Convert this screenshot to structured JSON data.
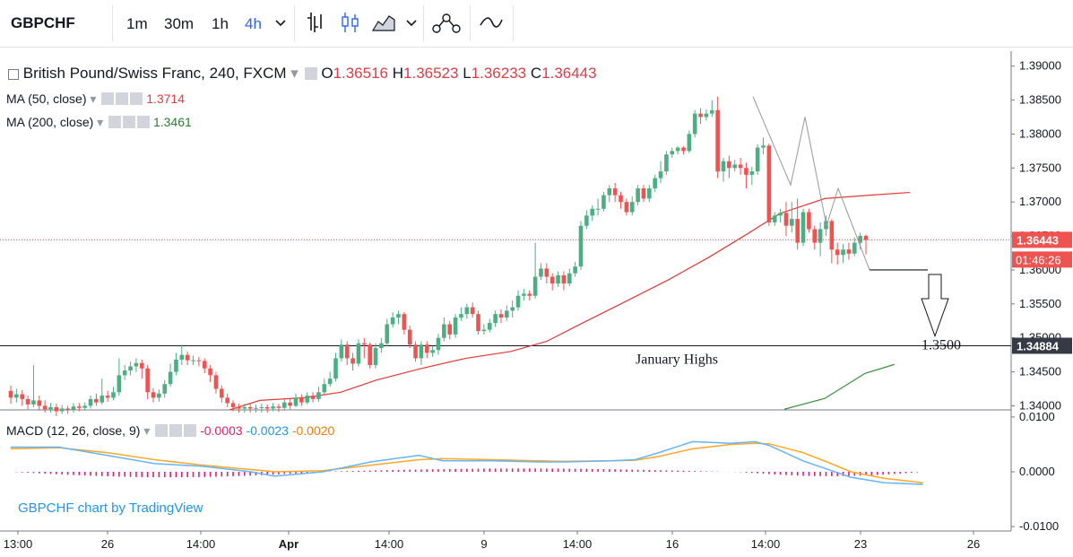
{
  "toolbar": {
    "symbol": "GBPCHF",
    "intervals": [
      "1m",
      "30m",
      "1h",
      "4h"
    ],
    "active_interval": "4h",
    "icons": [
      "chevron-down-icon",
      "bars-icon",
      "candles-icon",
      "area-icon",
      "chevron-down-icon",
      "indicators-icon",
      "compare-icon"
    ]
  },
  "legend": {
    "title": "British Pound/Swiss Franc, 240, FXCM",
    "ohlc": [
      {
        "k": "O",
        "v": "1.36516"
      },
      {
        "k": "H",
        "v": "1.36523"
      },
      {
        "k": "L",
        "v": "1.36233"
      },
      {
        "k": "C",
        "v": "1.36443"
      }
    ],
    "ma50_label": "MA (50, close)",
    "ma50_value": "1.3714",
    "ma200_label": "MA (200, close)",
    "ma200_value": "1.3461",
    "macd_label": "MACD (12, 26, close, 9)",
    "macd_hist": "-0.0003",
    "macd_line": "-0.0023",
    "macd_signal": "-0.0020"
  },
  "watermark": "GBPCHF chart by TradingView",
  "colors": {
    "up": "#4caf83",
    "down": "#ef5350",
    "ma50": "#e53935",
    "ma200": "#388e3c",
    "macd": "#64b5f6",
    "signal": "#ffa726",
    "hist": "#e91e63"
  },
  "chart_data": [
    {
      "type": "candlestick",
      "title": "British Pound/Swiss Franc, 240, FXCM",
      "x_ticks": [
        "13:00",
        "26",
        "14:00",
        "Apr",
        "14:00",
        "9",
        "14:00",
        "16",
        "14:00",
        "23",
        "26"
      ],
      "y_ticks": [
        "1.39000",
        "1.38500",
        "1.38000",
        "1.37500",
        "1.37000",
        "1.36500",
        "1.36000",
        "1.35500",
        "1.35000",
        "1.34500",
        "1.34000"
      ],
      "ylim": [
        1.3394,
        1.3922
      ],
      "current_price_label": "1.36443",
      "countdown_label": "01:46:26",
      "current_price": 1.36443,
      "horizontal_line": {
        "value": 1.34884,
        "label": "1.34884",
        "annotation": "January Highs"
      },
      "target": {
        "value": 1.35,
        "label": "1.3500"
      },
      "support_line": 1.36,
      "zigzag": [
        1.3855,
        1.3725,
        1.3825,
        1.3665,
        1.372,
        1.36
      ],
      "ma200_start": 1.3395,
      "ma200_end": 1.3461,
      "candles": [
        [
          1.3422,
          1.3412,
          1.343,
          1.3403
        ],
        [
          1.3412,
          1.3417,
          1.3425,
          1.3405
        ],
        [
          1.3417,
          1.341,
          1.3423,
          1.34
        ],
        [
          1.341,
          1.3402,
          1.3415,
          1.3395
        ],
        [
          1.3402,
          1.3408,
          1.346,
          1.3398
        ],
        [
          1.3408,
          1.34,
          1.3415,
          1.3393
        ],
        [
          1.34,
          1.3395,
          1.3408,
          1.339
        ],
        [
          1.3395,
          1.3398,
          1.3404,
          1.339
        ],
        [
          1.3398,
          1.3392,
          1.3403,
          1.3385
        ],
        [
          1.3392,
          1.3396,
          1.3401,
          1.3388
        ],
        [
          1.3396,
          1.3394,
          1.34,
          1.3388
        ],
        [
          1.3394,
          1.3399,
          1.3404,
          1.339
        ],
        [
          1.3399,
          1.3397,
          1.3404,
          1.3392
        ],
        [
          1.3397,
          1.34,
          1.3405,
          1.3393
        ],
        [
          1.34,
          1.341,
          1.3415,
          1.3396
        ],
        [
          1.341,
          1.3405,
          1.3418,
          1.34
        ],
        [
          1.3405,
          1.3415,
          1.344,
          1.3402
        ],
        [
          1.3415,
          1.3412,
          1.3422,
          1.3406
        ],
        [
          1.3412,
          1.342,
          1.3428,
          1.3408
        ],
        [
          1.342,
          1.3445,
          1.347,
          1.3415
        ],
        [
          1.3445,
          1.3452,
          1.346,
          1.3438
        ],
        [
          1.3452,
          1.3458,
          1.3465,
          1.3445
        ],
        [
          1.3458,
          1.3463,
          1.347,
          1.345
        ],
        [
          1.3463,
          1.3455,
          1.3468,
          1.344
        ],
        [
          1.3455,
          1.342,
          1.346,
          1.341
        ],
        [
          1.342,
          1.3412,
          1.3426,
          1.3405
        ],
        [
          1.3412,
          1.3418,
          1.3424,
          1.3406
        ],
        [
          1.3418,
          1.3432,
          1.3438,
          1.3412
        ],
        [
          1.3432,
          1.345,
          1.3462,
          1.3428
        ],
        [
          1.345,
          1.3468,
          1.3478,
          1.3445
        ],
        [
          1.3468,
          1.3475,
          1.349,
          1.346
        ],
        [
          1.3475,
          1.3467,
          1.348,
          1.346
        ],
        [
          1.3467,
          1.3467,
          1.3474,
          1.346
        ],
        [
          1.3467,
          1.3466,
          1.3472,
          1.3458
        ],
        [
          1.3466,
          1.3455,
          1.347,
          1.3448
        ],
        [
          1.3455,
          1.3445,
          1.346,
          1.3435
        ],
        [
          1.3445,
          1.3425,
          1.345,
          1.3418
        ],
        [
          1.3425,
          1.3412,
          1.343,
          1.3405
        ],
        [
          1.3412,
          1.3404,
          1.3418,
          1.3398
        ],
        [
          1.3404,
          1.3398,
          1.3408,
          1.3392
        ],
        [
          1.3398,
          1.3396,
          1.3403,
          1.339
        ],
        [
          1.3396,
          1.3398,
          1.3403,
          1.339
        ],
        [
          1.3398,
          1.3396,
          1.3403,
          1.339
        ],
        [
          1.3396,
          1.3397,
          1.3402,
          1.339
        ],
        [
          1.3397,
          1.3398,
          1.3403,
          1.339
        ],
        [
          1.3398,
          1.3396,
          1.3402,
          1.339
        ],
        [
          1.3396,
          1.3399,
          1.3404,
          1.3392
        ],
        [
          1.3399,
          1.3397,
          1.3403,
          1.3391
        ],
        [
          1.3397,
          1.3405,
          1.341,
          1.3393
        ],
        [
          1.3405,
          1.34,
          1.341,
          1.3395
        ],
        [
          1.34,
          1.3412,
          1.3418,
          1.3398
        ],
        [
          1.3412,
          1.3405,
          1.3417,
          1.34
        ],
        [
          1.3405,
          1.3415,
          1.342,
          1.3402
        ],
        [
          1.3415,
          1.341,
          1.342,
          1.3405
        ],
        [
          1.341,
          1.342,
          1.3428,
          1.3406
        ],
        [
          1.342,
          1.3432,
          1.344,
          1.3415
        ],
        [
          1.3432,
          1.344,
          1.345,
          1.3428
        ],
        [
          1.344,
          1.347,
          1.3478,
          1.3436
        ],
        [
          1.347,
          1.349,
          1.3498,
          1.3465
        ],
        [
          1.349,
          1.347,
          1.3495,
          1.346
        ],
        [
          1.347,
          1.3462,
          1.3478,
          1.3452
        ],
        [
          1.3462,
          1.3492,
          1.3498,
          1.3458
        ],
        [
          1.3492,
          1.349,
          1.35,
          1.347
        ],
        [
          1.349,
          1.346,
          1.3493,
          1.3455
        ],
        [
          1.346,
          1.3485,
          1.3492,
          1.3455
        ],
        [
          1.3485,
          1.3492,
          1.35,
          1.3478
        ],
        [
          1.3492,
          1.352,
          1.3528,
          1.3488
        ],
        [
          1.352,
          1.353,
          1.3538,
          1.3515
        ],
        [
          1.353,
          1.3535,
          1.354,
          1.352
        ],
        [
          1.3535,
          1.3512,
          1.3538,
          1.3505
        ],
        [
          1.3512,
          1.349,
          1.3518,
          1.3485
        ],
        [
          1.349,
          1.347,
          1.3495,
          1.3465
        ],
        [
          1.347,
          1.349,
          1.3495,
          1.346
        ],
        [
          1.349,
          1.3478,
          1.3495,
          1.347
        ],
        [
          1.3478,
          1.3482,
          1.3488,
          1.3472
        ],
        [
          1.3482,
          1.35,
          1.3506,
          1.3475
        ],
        [
          1.35,
          1.352,
          1.353,
          1.3495
        ],
        [
          1.352,
          1.3505,
          1.3525,
          1.3498
        ],
        [
          1.3505,
          1.353,
          1.3535,
          1.35
        ],
        [
          1.353,
          1.3535,
          1.3545,
          1.3525
        ],
        [
          1.3535,
          1.3545,
          1.355,
          1.3528
        ],
        [
          1.3545,
          1.3535,
          1.3552,
          1.353
        ],
        [
          1.3535,
          1.351,
          1.354,
          1.3505
        ],
        [
          1.351,
          1.3512,
          1.352,
          1.3505
        ],
        [
          1.3512,
          1.3522,
          1.3528,
          1.3508
        ],
        [
          1.3522,
          1.3535,
          1.354,
          1.3516
        ],
        [
          1.3535,
          1.353,
          1.3542,
          1.3522
        ],
        [
          1.353,
          1.354,
          1.3548,
          1.3525
        ],
        [
          1.354,
          1.3545,
          1.3555,
          1.353
        ],
        [
          1.3545,
          1.3562,
          1.357,
          1.354
        ],
        [
          1.3562,
          1.3565,
          1.3572,
          1.3555
        ],
        [
          1.3565,
          1.3562,
          1.357,
          1.3555
        ],
        [
          1.3562,
          1.359,
          1.364,
          1.3558
        ],
        [
          1.359,
          1.3602,
          1.361,
          1.3585
        ],
        [
          1.3602,
          1.359,
          1.361,
          1.358
        ],
        [
          1.359,
          1.358,
          1.3595,
          1.357
        ],
        [
          1.358,
          1.3592,
          1.3598,
          1.3575
        ],
        [
          1.3592,
          1.358,
          1.3598,
          1.357
        ],
        [
          1.358,
          1.3595,
          1.3602,
          1.3576
        ],
        [
          1.3595,
          1.3605,
          1.3612,
          1.359
        ],
        [
          1.3605,
          1.3665,
          1.3672,
          1.36
        ],
        [
          1.3665,
          1.368,
          1.3688,
          1.366
        ],
        [
          1.368,
          1.369,
          1.3695,
          1.3672
        ],
        [
          1.369,
          1.369,
          1.3705,
          1.368
        ],
        [
          1.369,
          1.371,
          1.3715,
          1.3686
        ],
        [
          1.371,
          1.372,
          1.3725,
          1.37
        ],
        [
          1.372,
          1.371,
          1.3728,
          1.37
        ],
        [
          1.371,
          1.37,
          1.3715,
          1.369
        ],
        [
          1.37,
          1.3685,
          1.3705,
          1.368
        ],
        [
          1.3685,
          1.37,
          1.3708,
          1.368
        ],
        [
          1.37,
          1.372,
          1.3725,
          1.3695
        ],
        [
          1.372,
          1.3705,
          1.3725,
          1.37
        ],
        [
          1.3705,
          1.372,
          1.3725,
          1.37
        ],
        [
          1.372,
          1.3735,
          1.374,
          1.3715
        ],
        [
          1.3735,
          1.3745,
          1.376,
          1.3728
        ],
        [
          1.3745,
          1.377,
          1.3775,
          1.374
        ],
        [
          1.377,
          1.3775,
          1.378,
          1.3765
        ],
        [
          1.3775,
          1.378,
          1.3782,
          1.377
        ],
        [
          1.378,
          1.3775,
          1.3782,
          1.377
        ],
        [
          1.3775,
          1.38,
          1.3805,
          1.3772
        ],
        [
          1.38,
          1.383,
          1.3835,
          1.3795
        ],
        [
          1.383,
          1.3825,
          1.3838,
          1.3815
        ],
        [
          1.3825,
          1.383,
          1.3836,
          1.382
        ],
        [
          1.383,
          1.3835,
          1.385,
          1.3825
        ],
        [
          1.3835,
          1.3745,
          1.3855,
          1.3735
        ],
        [
          1.3745,
          1.376,
          1.3765,
          1.373
        ],
        [
          1.376,
          1.375,
          1.3768,
          1.3735
        ],
        [
          1.375,
          1.3755,
          1.3762,
          1.3745
        ],
        [
          1.3755,
          1.375,
          1.3765,
          1.374
        ],
        [
          1.375,
          1.374,
          1.3758,
          1.372
        ],
        [
          1.374,
          1.3745,
          1.3752,
          1.3725
        ],
        [
          1.3745,
          1.378,
          1.3785,
          1.374
        ],
        [
          1.378,
          1.3783,
          1.3795,
          1.377
        ],
        [
          1.3783,
          1.367,
          1.3786,
          1.3665
        ],
        [
          1.367,
          1.368,
          1.3685,
          1.3665
        ],
        [
          1.368,
          1.3684,
          1.369,
          1.367
        ],
        [
          1.3684,
          1.3665,
          1.37,
          1.365
        ],
        [
          1.3665,
          1.3675,
          1.37,
          1.3655
        ],
        [
          1.3675,
          1.364,
          1.3705,
          1.363
        ],
        [
          1.364,
          1.3685,
          1.369,
          1.3635
        ],
        [
          1.3685,
          1.366,
          1.369,
          1.3655
        ],
        [
          1.366,
          1.364,
          1.3665,
          1.363
        ],
        [
          1.364,
          1.366,
          1.367,
          1.362
        ],
        [
          1.366,
          1.3672,
          1.368,
          1.365
        ],
        [
          1.3672,
          1.363,
          1.3675,
          1.361
        ],
        [
          1.363,
          1.3622,
          1.364,
          1.3608
        ],
        [
          1.3622,
          1.363,
          1.3638,
          1.361
        ],
        [
          1.363,
          1.3624,
          1.364,
          1.3615
        ],
        [
          1.3624,
          1.364,
          1.3648,
          1.362
        ],
        [
          1.364,
          1.365,
          1.3655,
          1.363
        ],
        [
          1.365,
          1.3644,
          1.3652,
          1.3623
        ]
      ],
      "ma50": [
        [
          0,
          1.3394
        ],
        [
          5,
          1.3395
        ],
        [
          15,
          1.34
        ],
        [
          25,
          1.3405
        ],
        [
          40,
          1.341
        ],
        [
          55,
          1.342
        ],
        [
          65,
          1.344
        ],
        [
          75,
          1.346
        ],
        [
          85,
          1.348
        ],
        [
          95,
          1.351
        ],
        [
          105,
          1.355
        ],
        [
          115,
          1.359
        ],
        [
          125,
          1.364
        ],
        [
          135,
          1.367
        ],
        [
          145,
          1.3705
        ],
        [
          155,
          1.3714
        ]
      ]
    },
    {
      "type": "macd",
      "title": "MACD (12, 26, close, 9)",
      "y_ticks": [
        "0.0100",
        "0.0000",
        "-0.0100"
      ],
      "ylim": [
        -0.0108,
        0.0108
      ],
      "macd_line": [
        [
          0,
          0.0045
        ],
        [
          10,
          0.0045
        ],
        [
          20,
          0.003
        ],
        [
          30,
          0.0015
        ],
        [
          40,
          0.001
        ],
        [
          50,
          0.0
        ],
        [
          55,
          -0.0008
        ],
        [
          65,
          0.0
        ],
        [
          75,
          0.0018
        ],
        [
          85,
          0.003
        ],
        [
          90,
          0.002
        ],
        [
          100,
          0.002
        ],
        [
          110,
          0.0018
        ],
        [
          115,
          0.0018
        ],
        [
          125,
          0.002
        ],
        [
          130,
          0.0022
        ],
        [
          135,
          0.0035
        ],
        [
          142,
          0.0055
        ],
        [
          150,
          0.0052
        ],
        [
          155,
          0.0055
        ],
        [
          158,
          0.0048
        ],
        [
          165,
          0.002
        ],
        [
          170,
          0.0005
        ],
        [
          175,
          -0.001
        ],
        [
          182,
          -0.002
        ],
        [
          190,
          -0.0023
        ]
      ],
      "signal_line": [
        [
          0,
          0.0042
        ],
        [
          10,
          0.0044
        ],
        [
          20,
          0.0035
        ],
        [
          30,
          0.0022
        ],
        [
          40,
          0.0012
        ],
        [
          50,
          0.0004
        ],
        [
          55,
          0.0
        ],
        [
          65,
          0.0002
        ],
        [
          75,
          0.0012
        ],
        [
          85,
          0.0022
        ],
        [
          90,
          0.0024
        ],
        [
          100,
          0.0022
        ],
        [
          110,
          0.002
        ],
        [
          115,
          0.0019
        ],
        [
          125,
          0.002
        ],
        [
          130,
          0.0021
        ],
        [
          135,
          0.0028
        ],
        [
          142,
          0.0042
        ],
        [
          150,
          0.005
        ],
        [
          155,
          0.0052
        ],
        [
          158,
          0.0051
        ],
        [
          165,
          0.0035
        ],
        [
          170,
          0.0018
        ],
        [
          175,
          0.0
        ],
        [
          182,
          -0.0012
        ],
        [
          190,
          -0.002
        ]
      ]
    }
  ]
}
